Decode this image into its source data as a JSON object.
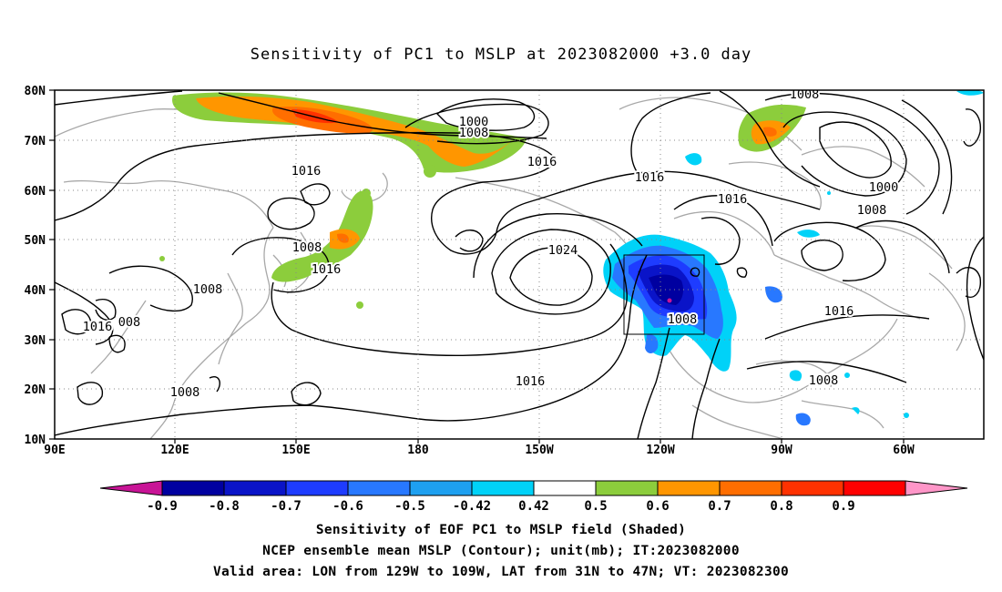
{
  "title": "Sensitivity of PC1 to MSLP at 2023082000 +3.0 day",
  "axes": {
    "lon_labels": [
      "90E",
      "120E",
      "150E",
      "180",
      "150W",
      "120W",
      "90W",
      "60W"
    ],
    "lat_labels": [
      "80N",
      "70N",
      "60N",
      "50N",
      "40N",
      "30N",
      "20N",
      "10N"
    ]
  },
  "contour_labels": [
    {
      "id": "c1",
      "text": "1000"
    },
    {
      "id": "c2",
      "text": "1008"
    },
    {
      "id": "c3",
      "text": "1016"
    },
    {
      "id": "c4",
      "text": "1016"
    },
    {
      "id": "c5",
      "text": "1016"
    },
    {
      "id": "c6",
      "text": "1016"
    },
    {
      "id": "c7",
      "text": "1008"
    },
    {
      "id": "c8",
      "text": "1000"
    },
    {
      "id": "c9",
      "text": "1008"
    },
    {
      "id": "c10",
      "text": "1008"
    },
    {
      "id": "c11",
      "text": "1016"
    },
    {
      "id": "c12",
      "text": "1024"
    },
    {
      "id": "c13",
      "text": "1008"
    },
    {
      "id": "c14",
      "text": "1016"
    },
    {
      "id": "c15",
      "text": "008"
    },
    {
      "id": "c16",
      "text": "1008"
    },
    {
      "id": "c17",
      "text": "1016"
    },
    {
      "id": "c18",
      "text": "1008"
    },
    {
      "id": "c19",
      "text": "1016"
    },
    {
      "id": "c20",
      "text": "1008"
    }
  ],
  "colorbar": {
    "labels": [
      "-0.9",
      "-0.8",
      "-0.7",
      "-0.6",
      "-0.5",
      "-0.42",
      "0.42",
      "0.5",
      "0.6",
      "0.7",
      "0.8",
      "0.9"
    ],
    "colors": [
      "#c81496",
      "#0000a0",
      "#0a14c8",
      "#1e3cff",
      "#2878ff",
      "#1ea0f0",
      "#00d2f8",
      "#ffffff",
      "#8ccd3c",
      "#ff9600",
      "#ff6e00",
      "#ff3200",
      "#ff0000",
      "#ff96c8"
    ]
  },
  "captions": {
    "line1": "Sensitivity of EOF PC1 to MSLP field (Shaded)",
    "line2": "NCEP ensemble mean MSLP (Contour); unit(mb); IT:2023082000",
    "line3": "Valid area: LON from 129W to 109W, LAT from 31N to 47N; VT: 2023082300"
  }
}
